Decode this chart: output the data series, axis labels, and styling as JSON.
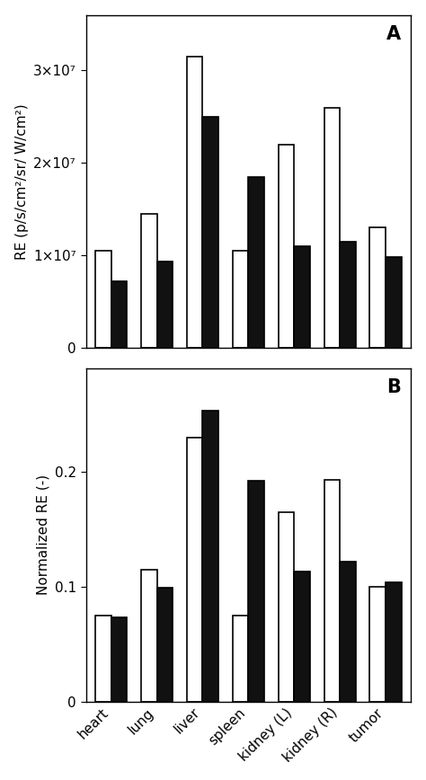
{
  "categories": [
    "heart",
    "lung",
    "liver",
    "spleen",
    "kidney (L)",
    "kidney (R)",
    "tumor"
  ],
  "panel_A": {
    "white_bars": [
      10500000.0,
      14500000.0,
      31500000.0,
      10500000.0,
      22000000.0,
      26000000.0,
      13000000.0
    ],
    "black_bars": [
      7200000.0,
      9300000.0,
      25000000.0,
      18500000.0,
      11000000.0,
      11500000.0,
      9800000.0
    ],
    "ylabel": "RE (p/s/cm²/sr/ W/cm²)",
    "ylim": [
      0,
      36000000.0
    ],
    "yticks": [
      0,
      10000000.0,
      20000000.0,
      30000000.0
    ],
    "yticklabels": [
      "0",
      "1×10⁷",
      "2×10⁷",
      "3×10⁷"
    ],
    "panel_label": "A"
  },
  "panel_B": {
    "white_bars": [
      0.075,
      0.115,
      0.23,
      0.075,
      0.165,
      0.193,
      0.1
    ],
    "black_bars": [
      0.073,
      0.099,
      0.253,
      0.192,
      0.113,
      0.122,
      0.104
    ],
    "ylabel": "Normalized RE (-)",
    "ylim": [
      0,
      0.29
    ],
    "yticks": [
      0,
      0.1,
      0.2
    ],
    "yticklabels": [
      "0",
      "0.1",
      "0.2"
    ],
    "panel_label": "B"
  },
  "bar_width": 0.35,
  "white_color": "#ffffff",
  "black_color": "#111111",
  "edge_color": "#000000",
  "tick_fontsize": 11,
  "label_fontsize": 11,
  "panel_label_fontsize": 15,
  "figure_width": 4.74,
  "figure_height": 8.68
}
